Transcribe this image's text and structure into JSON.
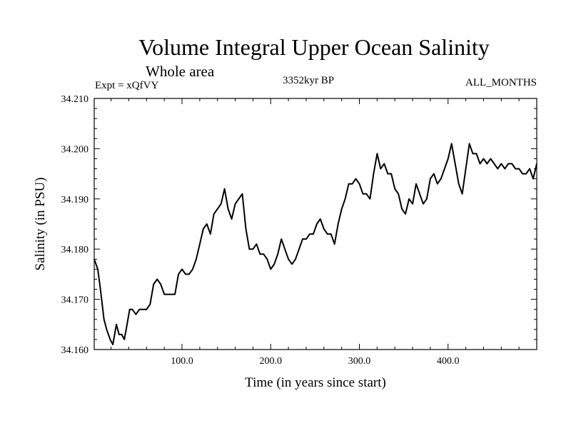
{
  "header": {
    "title": "Volume Integral Upper Ocean Salinity",
    "subtitle": "Whole area",
    "expt": "Expt = xQfVY",
    "period": "3352kyr BP",
    "months": "ALL_MONTHS"
  },
  "chart_data": {
    "type": "line",
    "title": "Volume Integral Upper Ocean Salinity",
    "xlabel": "Time (in years since start)",
    "ylabel": "Salinity (in PSU)",
    "xlim": [
      1,
      500
    ],
    "ylim": [
      34.16,
      34.21
    ],
    "x_ticks": [
      100,
      200,
      300,
      400
    ],
    "x_tick_labels": [
      "100.0",
      "200.0",
      "300.0",
      "400.0"
    ],
    "y_ticks": [
      34.16,
      34.17,
      34.18,
      34.19,
      34.2,
      34.21
    ],
    "y_tick_labels": [
      "34.160",
      "34.170",
      "34.180",
      "34.190",
      "34.200",
      "34.210"
    ],
    "series": [
      {
        "name": "Salinity",
        "color": "#000000",
        "x": [
          1,
          5,
          8,
          12,
          15,
          19,
          22,
          26,
          29,
          32,
          35,
          38,
          41,
          44,
          48,
          52,
          56,
          60,
          64,
          68,
          72,
          76,
          80,
          84,
          88,
          92,
          96,
          100,
          104,
          108,
          112,
          116,
          120,
          124,
          128,
          132,
          136,
          140,
          144,
          148,
          152,
          156,
          160,
          164,
          168,
          172,
          176,
          180,
          184,
          188,
          192,
          196,
          200,
          204,
          208,
          212,
          216,
          220,
          224,
          228,
          232,
          236,
          240,
          244,
          248,
          252,
          256,
          260,
          264,
          268,
          272,
          276,
          280,
          284,
          288,
          292,
          296,
          300,
          304,
          308,
          312,
          316,
          320,
          324,
          328,
          332,
          336,
          340,
          344,
          348,
          352,
          356,
          360,
          364,
          368,
          372,
          376,
          380,
          384,
          388,
          392,
          396,
          400,
          404,
          408,
          412,
          416,
          420,
          424,
          428,
          432,
          436,
          440,
          444,
          448,
          452,
          456,
          460,
          464,
          468,
          472,
          476,
          480,
          484,
          488,
          492,
          496,
          500
        ],
        "values": [
          34.178,
          34.176,
          34.172,
          34.166,
          34.164,
          34.162,
          34.161,
          34.165,
          34.163,
          34.163,
          34.162,
          34.165,
          34.168,
          34.168,
          34.167,
          34.168,
          34.168,
          34.168,
          34.169,
          34.173,
          34.174,
          34.173,
          34.171,
          34.171,
          34.171,
          34.171,
          34.175,
          34.176,
          34.175,
          34.175,
          34.176,
          34.178,
          34.181,
          34.184,
          34.185,
          34.183,
          34.187,
          34.188,
          34.189,
          34.192,
          34.188,
          34.186,
          34.189,
          34.19,
          34.191,
          34.184,
          34.18,
          34.18,
          34.181,
          34.179,
          34.179,
          34.178,
          34.176,
          34.177,
          34.179,
          34.182,
          34.18,
          34.178,
          34.177,
          34.178,
          34.18,
          34.182,
          34.182,
          34.183,
          34.183,
          34.185,
          34.186,
          34.184,
          34.183,
          34.183,
          34.181,
          34.185,
          34.188,
          34.19,
          34.193,
          34.193,
          34.194,
          34.193,
          34.191,
          34.191,
          34.19,
          34.195,
          34.199,
          34.196,
          34.197,
          34.195,
          34.195,
          34.192,
          34.191,
          34.188,
          34.187,
          34.19,
          34.189,
          34.193,
          34.191,
          34.189,
          34.19,
          34.194,
          34.195,
          34.193,
          34.194,
          34.196,
          34.198,
          34.201,
          34.197,
          34.193,
          34.191,
          34.196,
          34.201,
          34.199,
          34.199,
          34.197,
          34.198,
          34.197,
          34.198,
          34.197,
          34.196,
          34.197,
          34.196,
          34.197,
          34.197,
          34.196,
          34.196,
          34.195,
          34.195,
          34.196,
          34.194,
          34.197
        ]
      }
    ]
  }
}
